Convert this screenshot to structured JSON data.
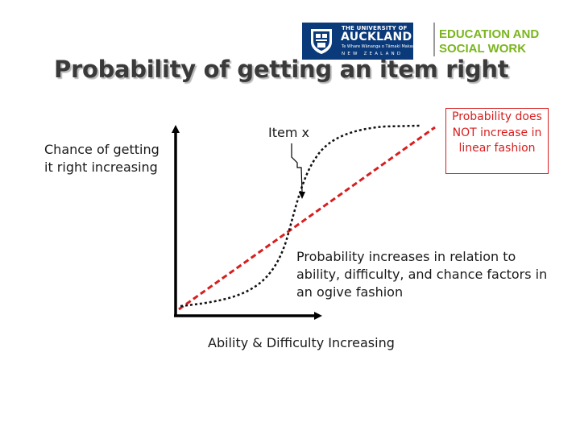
{
  "header": {
    "university": {
      "line1": "THE UNIVERSITY OF",
      "name": "AUCKLAND",
      "maori_name": "Te Whare Wānanga o Tāmaki Makaurau",
      "country": "NEW ZEALAND"
    },
    "faculty_line1": "EDUCATION AND",
    "faculty_line2": "SOCIAL WORK",
    "brand_color": "#0b3a7a",
    "faculty_color": "#7ab51d"
  },
  "slide": {
    "title": "Probability of getting an item right"
  },
  "diagram": {
    "y_axis_label": "Chance of getting it right increasing",
    "x_axis_label": "Ability & Difficulty Increasing",
    "item_label": "Item x",
    "callout_text": "Probability does NOT increase in linear fashion",
    "ogive_description": "Probability increases in relation to ability, difficulty, and chance factors in an ogive fashion",
    "linear_line_color": "#d81e1e",
    "ogive_line_color": "#111111"
  }
}
